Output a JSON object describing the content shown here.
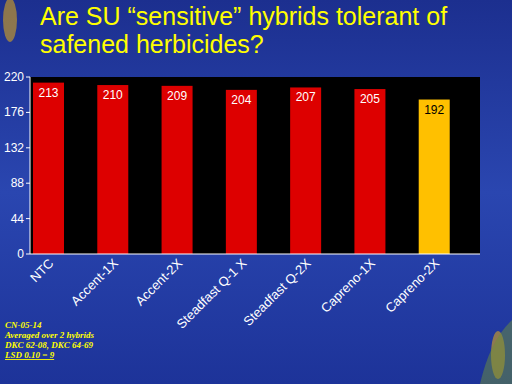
{
  "chart_data": {
    "type": "bar",
    "title": "Are SU “sensitive” hybrids tolerant of safened herbicides?",
    "categories": [
      "NTC",
      "Accent-1X",
      "Accent-2X",
      "Steadfast Q-1 X",
      "Steadfast Q-2X",
      "Capreno-1X",
      "Capreno-2X"
    ],
    "values": [
      213,
      210,
      209,
      204,
      207,
      205,
      192
    ],
    "colors": [
      "#dd0000",
      "#dd0000",
      "#dd0000",
      "#dd0000",
      "#dd0000",
      "#dd0000",
      "#ffc000"
    ],
    "ylim": [
      0,
      220
    ],
    "yticks": [
      0,
      44,
      88,
      132,
      176,
      220
    ],
    "grid": false,
    "data_labels": true,
    "annotations": [
      "CN-05-14",
      "Averaged over 2 hybrids",
      "DKC 62-08, DKC 64-69",
      "LSD 0.10 = 9"
    ]
  }
}
